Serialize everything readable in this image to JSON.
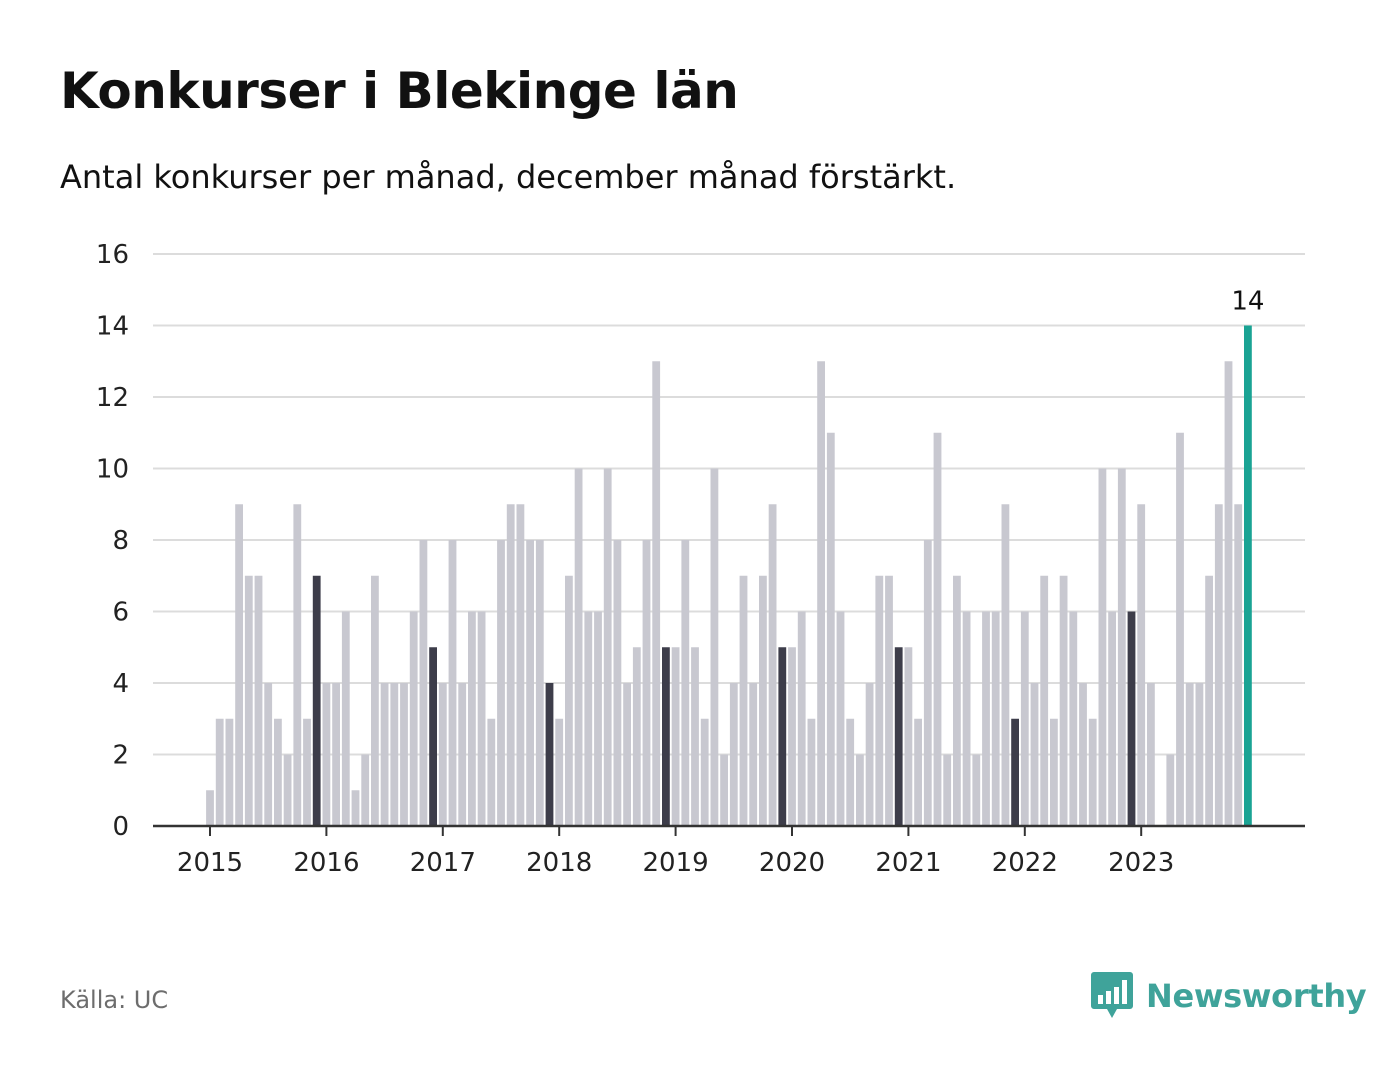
{
  "title": "Konkurser i Blekinge län",
  "subtitle": "Antal konkurser per månad, december månad förstärkt.",
  "source": "Källa: UC",
  "brand": {
    "name": "Newsworthy"
  },
  "colors": {
    "regular": "#c8c8d0",
    "december": "#3d3d4a",
    "latest": "#1aa394",
    "grid": "#dcdcdc",
    "axis": "#333333",
    "brand": "#3fa39a"
  },
  "chart_data": {
    "type": "bar",
    "title": "Konkurser i Blekinge län",
    "subtitle": "Antal konkurser per månad, december månad förstärkt.",
    "xlabel": "",
    "ylabel": "",
    "ylim": [
      0,
      16
    ],
    "yticks": [
      0,
      2,
      4,
      6,
      8,
      10,
      12,
      14,
      16
    ],
    "xticks": [
      "2015",
      "2016",
      "2017",
      "2018",
      "2019",
      "2020",
      "2021",
      "2022",
      "2023"
    ],
    "start": "2015-01",
    "grid": true,
    "highlight_label": "14",
    "values": [
      1,
      3,
      3,
      9,
      7,
      7,
      4,
      3,
      2,
      9,
      3,
      7,
      4,
      4,
      6,
      1,
      2,
      7,
      4,
      4,
      4,
      6,
      8,
      5,
      4,
      8,
      4,
      6,
      6,
      3,
      8,
      9,
      9,
      8,
      8,
      4,
      3,
      7,
      10,
      6,
      6,
      10,
      8,
      4,
      5,
      8,
      13,
      5,
      5,
      8,
      5,
      3,
      10,
      2,
      4,
      7,
      4,
      7,
      9,
      5,
      5,
      6,
      3,
      13,
      11,
      6,
      3,
      2,
      4,
      7,
      7,
      5,
      5,
      3,
      8,
      11,
      2,
      7,
      6,
      2,
      6,
      6,
      9,
      3,
      6,
      4,
      7,
      3,
      7,
      6,
      4,
      3,
      10,
      6,
      10,
      6,
      9,
      4,
      0,
      2,
      11,
      4,
      4,
      7,
      9,
      13,
      9,
      14
    ]
  }
}
